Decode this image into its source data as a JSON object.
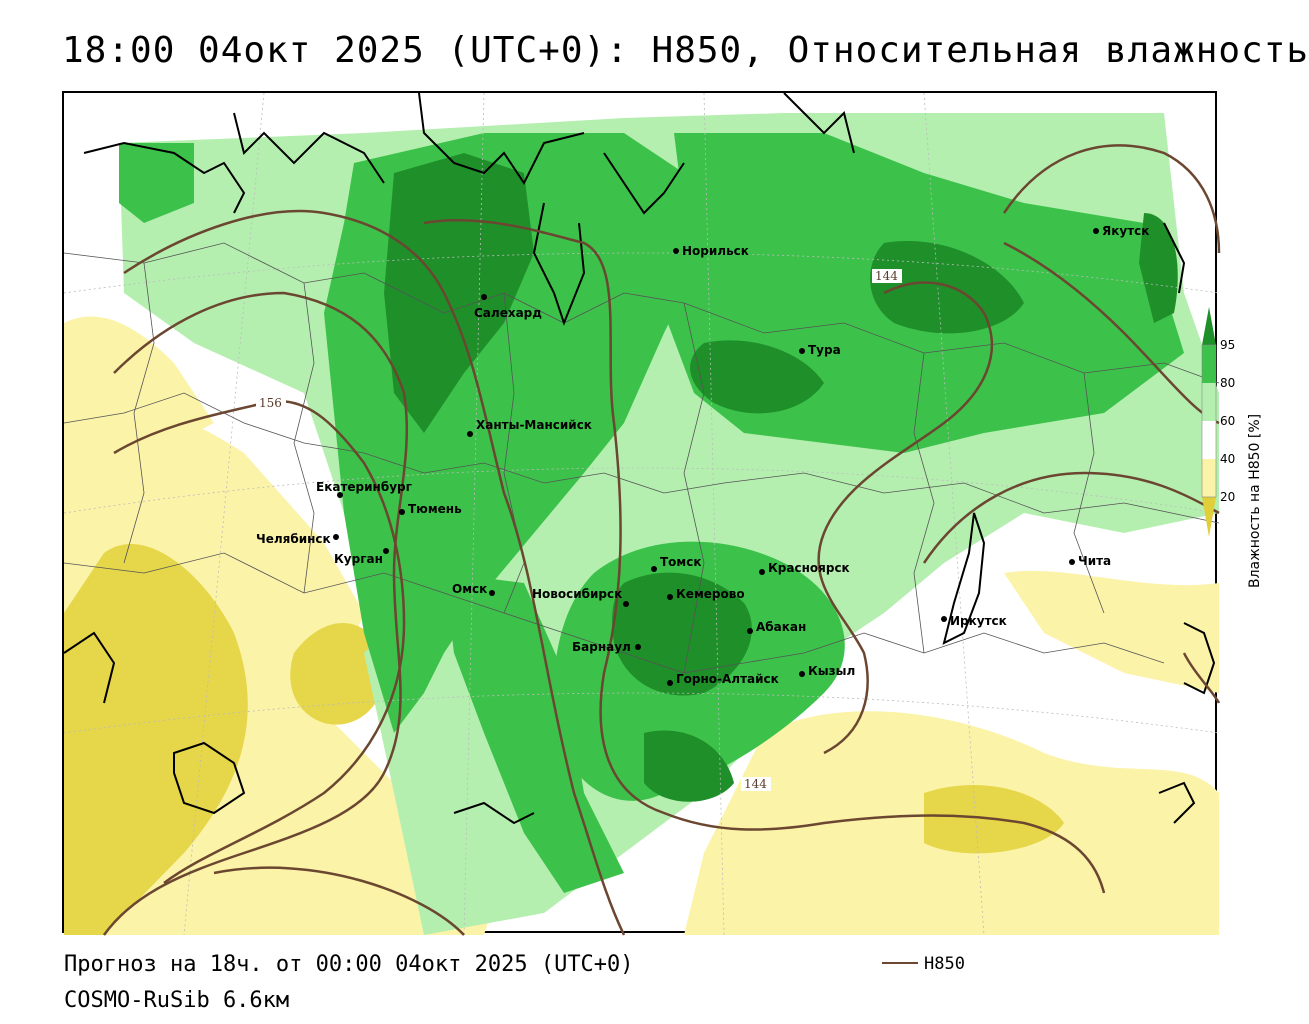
{
  "title": "18:00 04окт 2025 (UTC+0): H850, Относительная влажность",
  "footer": {
    "forecast": "Прогноз на 18ч. от 00:00 04окт 2025 (UTC+0)",
    "model": "COSMO-RuSib 6.6км"
  },
  "legend": {
    "contour_label": "H850",
    "contour_color": "#6b4630"
  },
  "scale": {
    "title": "Влажность на H850 [%]",
    "ticks": [
      "95",
      "80",
      "60",
      "40",
      "20"
    ],
    "colors": {
      "95": "#1f8f2a",
      "80": "#3cc24a",
      "60": "#b5efb0",
      "40": "#ffffff",
      "20": "#fbf3a8",
      "low": "#e0cf3a"
    }
  },
  "cities": [
    {
      "name": "Норильск"
    },
    {
      "name": "Якутск"
    },
    {
      "name": "Салехард"
    },
    {
      "name": "Тура"
    },
    {
      "name": "Ханты-Мансийск"
    },
    {
      "name": "Екатеринбург"
    },
    {
      "name": "Тюмень"
    },
    {
      "name": "Челябинск"
    },
    {
      "name": "Курган"
    },
    {
      "name": "Томск"
    },
    {
      "name": "Красноярск"
    },
    {
      "name": "Омск"
    },
    {
      "name": "Новосибирск"
    },
    {
      "name": "Кемерово"
    },
    {
      "name": "Абакан"
    },
    {
      "name": "Барнаул"
    },
    {
      "name": "Горно-Алтайск"
    },
    {
      "name": "Кызыл"
    },
    {
      "name": "Иркутск"
    },
    {
      "name": "Чита"
    }
  ],
  "contour_labels": [
    "144",
    "156",
    "144"
  ]
}
